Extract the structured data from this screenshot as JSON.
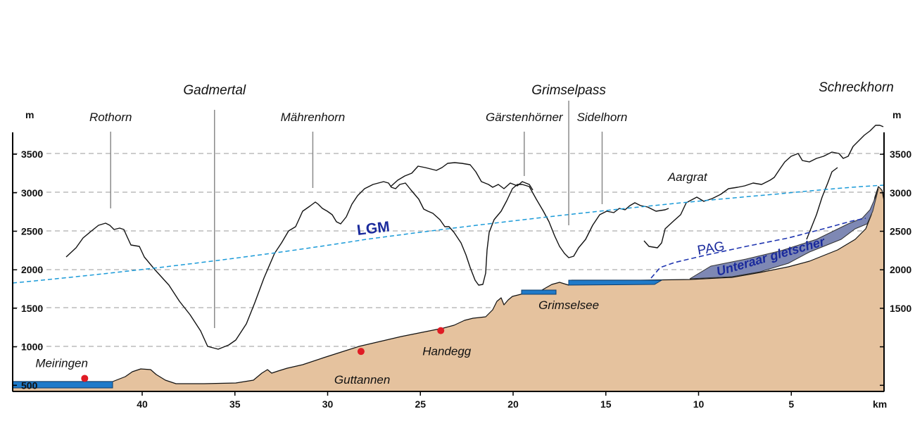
{
  "figure": {
    "units": {
      "left": "m",
      "right": "m",
      "bottom": "km"
    },
    "elevation_ticks": [
      {
        "value": 500,
        "left": "500",
        "right": ""
      },
      {
        "value": 1000,
        "left": "1000",
        "right": ""
      },
      {
        "value": 1500,
        "left": "1500",
        "right": "1500"
      },
      {
        "value": 2000,
        "left": "2000",
        "right": "2000"
      },
      {
        "value": 2500,
        "left": "2500",
        "right": "2500"
      },
      {
        "value": 3000,
        "left": "3000",
        "right": "3000"
      },
      {
        "value": 3500,
        "left": "3500",
        "right": "3500"
      }
    ],
    "distance_ticks": [
      {
        "value": 40,
        "label": "40"
      },
      {
        "value": 35,
        "label": "35"
      },
      {
        "value": 30,
        "label": "30"
      },
      {
        "value": 25,
        "label": "25"
      },
      {
        "value": 20,
        "label": "20"
      },
      {
        "value": 15,
        "label": "15"
      },
      {
        "value": 10,
        "label": "10"
      },
      {
        "value": 5,
        "label": "5"
      }
    ],
    "peaks": [
      {
        "name": "Rothorn",
        "km": 41.7,
        "style": "minor"
      },
      {
        "name": "Gadmertal",
        "km": 36.1,
        "style": "major"
      },
      {
        "name": "Mährenhorn",
        "km": 30.8,
        "style": "minor"
      },
      {
        "name": "Gärstenhörner",
        "km": 19.4,
        "style": "minor"
      },
      {
        "name": "Grimselpass",
        "km": 17.0,
        "style": "major"
      },
      {
        "name": "Sidelhorn",
        "km": 15.2,
        "style": "minor"
      },
      {
        "name": "Aargrat",
        "km": 10.6,
        "style": "plain"
      },
      {
        "name": "Schreckhorn",
        "km": 1.5,
        "style": "major"
      }
    ],
    "places": [
      {
        "name": "Meiringen",
        "km": 43.1,
        "elevation": 590
      },
      {
        "name": "Guttannen",
        "km": 28.2,
        "elevation": 940
      },
      {
        "name": "Handegg",
        "km": 23.9,
        "elevation": 1210
      },
      {
        "name": "Grimselsee",
        "km": 17.0,
        "elevation": 1790
      }
    ],
    "ice_lines": {
      "lgm": {
        "label": "LGM",
        "color": "#1a9ad8"
      },
      "pag": {
        "label": "PAG",
        "color": "#1f35b0"
      },
      "glacier": {
        "label": "Unteraar gletscher",
        "color": "#7e88b4"
      }
    },
    "colors": {
      "terrain": "#e5c29e",
      "lake": "#1f7ac9",
      "glacier": "#7e88b4",
      "marker": "#e01b24"
    }
  }
}
